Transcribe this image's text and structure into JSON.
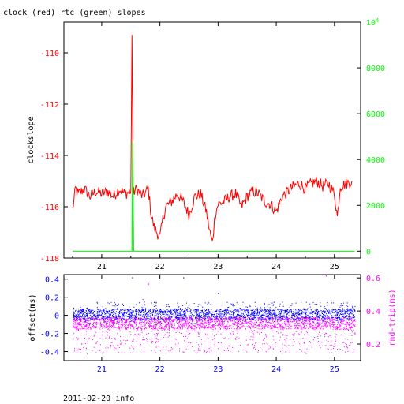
{
  "title": "clock (red) rtc (green) slopes",
  "footer": "2011-02-20 info",
  "colors": {
    "red": "#ff0000",
    "green": "#00ff00",
    "blue": "#0000ff",
    "magenta": "#ff00ff",
    "black": "#000000"
  },
  "chart_data": [
    {
      "type": "line",
      "panel": "top",
      "ylabel": "clockslope",
      "x": {
        "range": [
          20.35,
          25.45
        ],
        "ticks": [
          "21",
          "22",
          "23",
          "24",
          "25"
        ]
      },
      "y_left": {
        "range": [
          -118,
          -108.8
        ],
        "ticks": [
          "-110",
          "-112",
          "-114",
          "-116",
          "-118"
        ]
      },
      "y_right": {
        "range": [
          -300,
          10000
        ],
        "ticks": [
          "0",
          "2000",
          "4000",
          "6000",
          "8000",
          "10^4"
        ]
      },
      "series": [
        {
          "color": "red",
          "axis": "left",
          "x": [
            20.5,
            20.55,
            20.6,
            20.7,
            20.8,
            20.9,
            21.0,
            21.1,
            21.2,
            21.3,
            21.4,
            21.5,
            21.52,
            21.54,
            21.56,
            21.6,
            21.7,
            21.8,
            21.85,
            21.9,
            22.0,
            22.05,
            22.1,
            22.2,
            22.3,
            22.4,
            22.5,
            22.6,
            22.7,
            22.8,
            22.85,
            22.9,
            22.95,
            23.0,
            23.1,
            23.2,
            23.3,
            23.4,
            23.5,
            23.6,
            23.7,
            23.8,
            23.9,
            24.0,
            24.1,
            24.2,
            24.3,
            24.4,
            24.5,
            24.6,
            24.7,
            24.8,
            24.9,
            25.0,
            25.05,
            25.1,
            25.2,
            25.3
          ],
          "y": [
            -116.1,
            -115.3,
            -115.5,
            -115.3,
            -115.6,
            -115.4,
            -115.5,
            -115.4,
            -115.6,
            -115.3,
            -115.5,
            -115.4,
            -109.3,
            -115.5,
            -115.4,
            -115.3,
            -115.6,
            -115.3,
            -116.3,
            -116.8,
            -117.2,
            -116.5,
            -116.0,
            -115.8,
            -115.5,
            -115.8,
            -116.3,
            -115.6,
            -115.5,
            -116.2,
            -116.9,
            -117.4,
            -116.3,
            -115.9,
            -115.8,
            -115.6,
            -115.5,
            -116.0,
            -115.6,
            -115.4,
            -115.5,
            -115.8,
            -115.9,
            -116.2,
            -115.6,
            -115.4,
            -115.2,
            -115.1,
            -115.3,
            -115.1,
            -115.0,
            -115.2,
            -115.1,
            -115.5,
            -116.4,
            -115.2,
            -115.1,
            -115.0
          ]
        },
        {
          "color": "green",
          "axis": "right",
          "x": [
            20.5,
            21.52,
            21.53,
            21.54,
            21.55,
            25.35
          ],
          "y": [
            0,
            0,
            4800,
            2000,
            0,
            0
          ]
        }
      ]
    },
    {
      "type": "scatter",
      "panel": "bottom",
      "ylabel": "offset(ms)",
      "ylabel_right": "rnd-trip(ms)",
      "x": {
        "range": [
          20.35,
          25.45
        ],
        "ticks": [
          "21",
          "22",
          "23",
          "24",
          "25"
        ]
      },
      "y_left": {
        "range": [
          -0.5,
          0.45
        ],
        "ticks": [
          "0.4",
          "0.2",
          "0",
          "-0.2",
          "-0.4"
        ]
      },
      "y_right": {
        "range": [
          0.1,
          0.62
        ],
        "ticks": [
          "0.6",
          "0.4",
          "0.2"
        ]
      },
      "series": [
        {
          "color": "blue",
          "axis": "left",
          "band": [
            -0.05,
            0.07
          ],
          "scatter_range": [
            -0.1,
            0.15
          ],
          "x_range": [
            20.5,
            25.35
          ]
        },
        {
          "color": "magenta",
          "axis": "left",
          "band": [
            -0.15,
            -0.02
          ],
          "scatter_range": [
            -0.42,
            -0.15
          ],
          "x_range": [
            20.5,
            25.35
          ]
        }
      ]
    }
  ]
}
